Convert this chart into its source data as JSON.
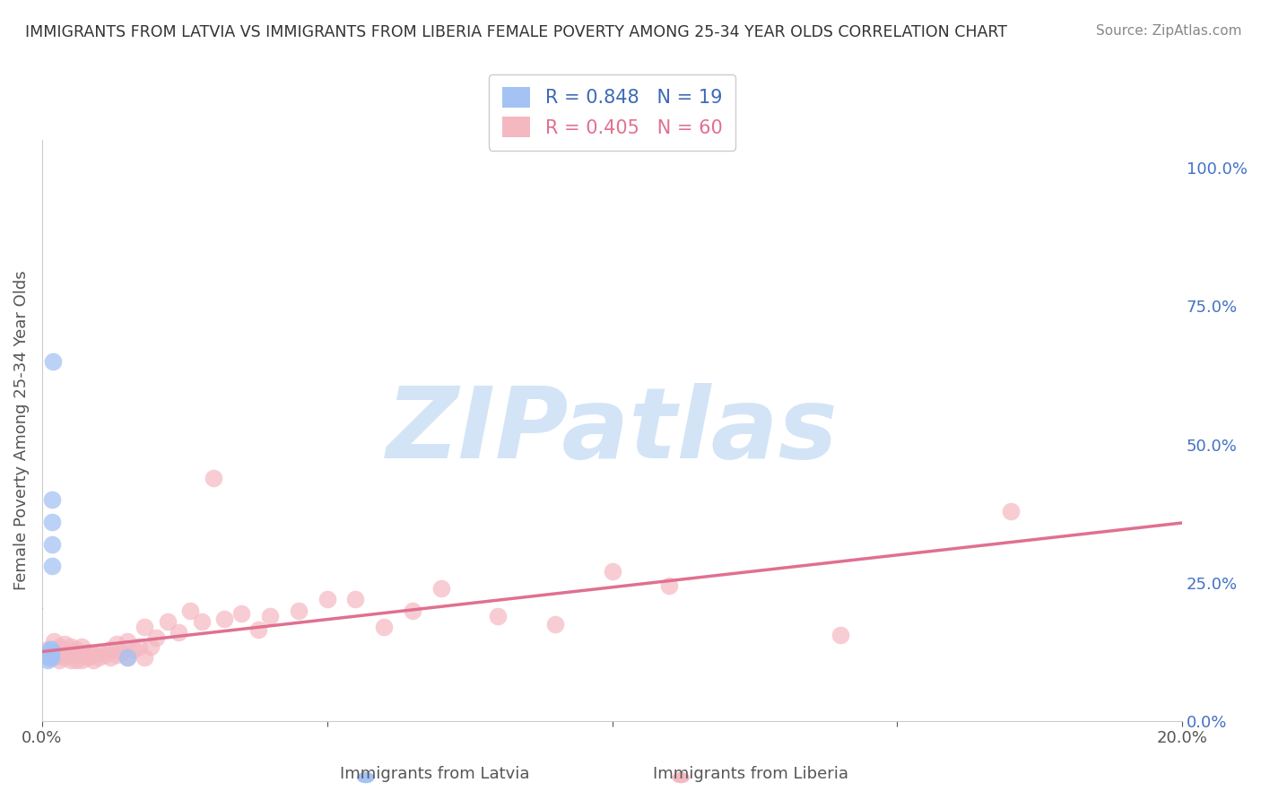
{
  "title": "IMMIGRANTS FROM LATVIA VS IMMIGRANTS FROM LIBERIA FEMALE POVERTY AMONG 25-34 YEAR OLDS CORRELATION CHART",
  "source": "Source: ZipAtlas.com",
  "ylabel": "Female Poverty Among 25-34 Year Olds",
  "legend_latvia": "Immigrants from Latvia",
  "legend_liberia": "Immigrants from Liberia",
  "r_latvia": 0.848,
  "n_latvia": 19,
  "r_liberia": 0.405,
  "n_liberia": 60,
  "color_latvia": "#a4c2f4",
  "color_liberia": "#f4b8c1",
  "color_latvia_line": "#3d6ab5",
  "color_liberia_line": "#e07090",
  "xlim": [
    0.0,
    0.2
  ],
  "ylim": [
    0.0,
    1.05
  ],
  "xtick_labels": [
    "0.0%",
    "",
    "",
    "",
    "20.0%"
  ],
  "yticks_right": [
    0.0,
    0.25,
    0.5,
    0.75,
    1.0
  ],
  "ytick_labels_right": [
    "0.0%",
    "25.0%",
    "50.0%",
    "75.0%",
    "100.0%"
  ],
  "latvia_x": [
    0.001,
    0.001,
    0.0012,
    0.0012,
    0.0013,
    0.0013,
    0.0014,
    0.0014,
    0.0015,
    0.0015,
    0.0016,
    0.0016,
    0.0016,
    0.0017,
    0.0017,
    0.0018,
    0.0018,
    0.0019,
    0.015
  ],
  "latvia_y": [
    0.12,
    0.11,
    0.115,
    0.12,
    0.115,
    0.125,
    0.12,
    0.13,
    0.115,
    0.12,
    0.115,
    0.125,
    0.13,
    0.28,
    0.32,
    0.36,
    0.4,
    0.65,
    0.115
  ],
  "liberia_x": [
    0.001,
    0.001,
    0.002,
    0.002,
    0.003,
    0.003,
    0.003,
    0.004,
    0.004,
    0.004,
    0.005,
    0.005,
    0.005,
    0.006,
    0.006,
    0.006,
    0.007,
    0.007,
    0.007,
    0.008,
    0.008,
    0.009,
    0.009,
    0.01,
    0.01,
    0.011,
    0.012,
    0.012,
    0.013,
    0.013,
    0.014,
    0.015,
    0.015,
    0.016,
    0.017,
    0.018,
    0.018,
    0.019,
    0.02,
    0.022,
    0.024,
    0.026,
    0.028,
    0.03,
    0.032,
    0.035,
    0.038,
    0.04,
    0.045,
    0.05,
    0.055,
    0.06,
    0.065,
    0.07,
    0.08,
    0.09,
    0.1,
    0.11,
    0.14,
    0.17
  ],
  "liberia_y": [
    0.12,
    0.13,
    0.115,
    0.145,
    0.11,
    0.12,
    0.135,
    0.115,
    0.125,
    0.14,
    0.11,
    0.12,
    0.135,
    0.11,
    0.12,
    0.13,
    0.11,
    0.12,
    0.135,
    0.115,
    0.125,
    0.11,
    0.12,
    0.115,
    0.125,
    0.12,
    0.115,
    0.13,
    0.12,
    0.14,
    0.125,
    0.115,
    0.145,
    0.13,
    0.135,
    0.115,
    0.17,
    0.135,
    0.15,
    0.18,
    0.16,
    0.2,
    0.18,
    0.44,
    0.185,
    0.195,
    0.165,
    0.19,
    0.2,
    0.22,
    0.22,
    0.17,
    0.2,
    0.24,
    0.19,
    0.175,
    0.27,
    0.245,
    0.155,
    0.38
  ],
  "background_color": "#ffffff",
  "grid_color": "#d0d0d0",
  "watermark": "ZIPatlas",
  "watermark_color_zip": "#b8d4f0",
  "watermark_color_atlas": "#d0d8e8"
}
